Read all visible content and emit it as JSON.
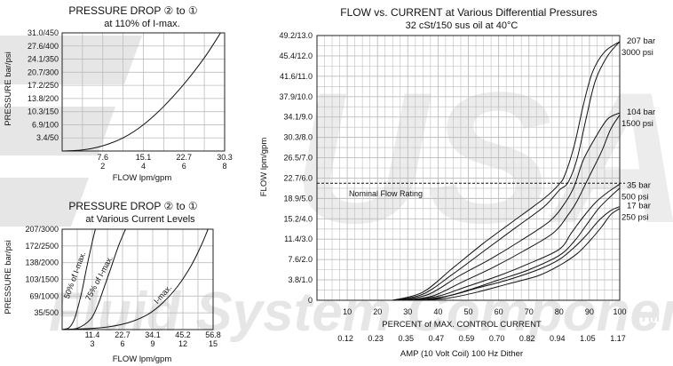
{
  "watermark": {
    "logo_text": "USA",
    "text": "Fluid System Components",
    "mark": "TM",
    "color": "#e8e8e8"
  },
  "colors": {
    "grid": "#bdbdbd",
    "line": "#111111",
    "watermark": "#e6e6e6"
  },
  "chart_data": [
    {
      "id": "top_left",
      "type": "line",
      "title": "PRESSURE DROP ② to ①",
      "subtitle": "at 110% of I-max.",
      "ylabel": "PRESSURE bar/psi",
      "xlabel": "FLOW lpm/gpm",
      "xlim": [
        0,
        8
      ],
      "ylim": [
        0,
        450
      ],
      "xticks": [
        {
          "v": 2,
          "top": "7.6",
          "bottom": "2"
        },
        {
          "v": 4,
          "top": "15.1",
          "bottom": "4"
        },
        {
          "v": 6,
          "top": "22.7",
          "bottom": "6"
        },
        {
          "v": 8,
          "top": "30.3",
          "bottom": "8"
        }
      ],
      "yticks": [
        {
          "v": 50,
          "label": "3.4/50"
        },
        {
          "v": 100,
          "label": "6.9/100"
        },
        {
          "v": 150,
          "label": "10.3/150"
        },
        {
          "v": 200,
          "label": "13.8/200"
        },
        {
          "v": 250,
          "label": "17.2/250"
        },
        {
          "v": 300,
          "label": "20.7/300"
        },
        {
          "v": 350,
          "label": "24.1/350"
        },
        {
          "v": 400,
          "label": "27.6/400"
        },
        {
          "v": 450,
          "label": "31.0/450"
        }
      ],
      "series": [
        {
          "x": [
            0,
            1,
            2,
            3,
            4,
            5,
            6,
            7,
            7.8
          ],
          "y": [
            0,
            4,
            20,
            50,
            100,
            170,
            255,
            355,
            450
          ]
        }
      ],
      "grid": true
    },
    {
      "id": "bottom_left",
      "type": "line",
      "title": "PRESSURE DROP ② to ①",
      "subtitle": "at Various Current Levels",
      "ylabel": "PRESSURE bar/psi",
      "xlabel": "FLOW lpm/gpm",
      "xlim": [
        0,
        15
      ],
      "ylim": [
        0,
        3000
      ],
      "xticks": [
        {
          "v": 3,
          "top": "11.4",
          "bottom": "3"
        },
        {
          "v": 6,
          "top": "22.7",
          "bottom": "6"
        },
        {
          "v": 9,
          "top": "34.1",
          "bottom": "9"
        },
        {
          "v": 12,
          "top": "45.2",
          "bottom": "12"
        },
        {
          "v": 15,
          "top": "56.8",
          "bottom": "15"
        }
      ],
      "yticks": [
        {
          "v": 500,
          "label": "35/500"
        },
        {
          "v": 1000,
          "label": "69/1000"
        },
        {
          "v": 1500,
          "label": "103/1500"
        },
        {
          "v": 2000,
          "label": "138/2000"
        },
        {
          "v": 2500,
          "label": "172/2500"
        },
        {
          "v": 3000,
          "label": "207/3000"
        }
      ],
      "series": [
        {
          "name": "50% of I-max.",
          "x": [
            0,
            0.7,
            1.2,
            1.6,
            2.0,
            2.4,
            2.9,
            3.3
          ],
          "y": [
            0,
            60,
            300,
            700,
            1200,
            1800,
            2500,
            3000
          ]
        },
        {
          "name": "75% of I-max.",
          "x": [
            0,
            1.5,
            2.8,
            3.5,
            4.1,
            4.8,
            5.6,
            6.3
          ],
          "y": [
            0,
            40,
            300,
            700,
            1200,
            1800,
            2500,
            3000
          ]
        },
        {
          "name": "I-max.",
          "x": [
            0,
            4,
            6.5,
            8.5,
            10,
            11.5,
            12.8,
            13.8,
            14.5
          ],
          "y": [
            0,
            60,
            200,
            450,
            800,
            1300,
            1900,
            2500,
            3000
          ]
        }
      ],
      "series_labels": [
        "50% of I-max.",
        "75% of I-max.",
        "I-max."
      ],
      "grid": true
    },
    {
      "id": "main",
      "type": "line",
      "title": "FLOW vs. CURRENT at Various Differential Pressures",
      "subtitle": "32 cSt/150 sus oil at 40°C",
      "ylabel": "FLOW lpm/gpm",
      "xlabel": "PERCENT of MAX. CONTROL CURRENT",
      "x2label": "AMP (10 Volt Coil) 100 Hz Dither",
      "xlim": [
        0,
        100
      ],
      "ylim": [
        0,
        13
      ],
      "xticks": [
        {
          "v": 10,
          "label": "10",
          "amp": "0.12"
        },
        {
          "v": 20,
          "label": "20",
          "amp": "0.23"
        },
        {
          "v": 30,
          "label": "30",
          "amp": "0.35"
        },
        {
          "v": 40,
          "label": "40",
          "amp": "0.47"
        },
        {
          "v": 50,
          "label": "50",
          "amp": "0.59"
        },
        {
          "v": 60,
          "label": "60",
          "amp": "0.70"
        },
        {
          "v": 70,
          "label": "70",
          "amp": "0.82"
        },
        {
          "v": 80,
          "label": "80",
          "amp": "0.94"
        },
        {
          "v": 90,
          "label": "90",
          "amp": "1.05"
        },
        {
          "v": 100,
          "label": "100",
          "amp": "1.17"
        }
      ],
      "yticks": [
        {
          "v": 0,
          "label": "0"
        },
        {
          "v": 1,
          "label": "3.8/1.0"
        },
        {
          "v": 2,
          "label": "7.6/2.0"
        },
        {
          "v": 3,
          "label": "11.4/3.0"
        },
        {
          "v": 4,
          "label": "15.2/4.0"
        },
        {
          "v": 5,
          "label": "18.9/5.0"
        },
        {
          "v": 6,
          "label": "22.7/6.0"
        },
        {
          "v": 7,
          "label": "26.5/7.0"
        },
        {
          "v": 8,
          "label": "30.3/8.0"
        },
        {
          "v": 9,
          "label": "34.1/9.0"
        },
        {
          "v": 10,
          "label": "37.9/10.0"
        },
        {
          "v": 11,
          "label": "41.6/11.0"
        },
        {
          "v": 12,
          "label": "45.4/12.0"
        },
        {
          "v": 13,
          "label": "49.2/13.0"
        }
      ],
      "reference_line": {
        "y": 5.75,
        "label": "Nominal Flow Rating"
      },
      "series": [
        {
          "name": "207 bar 3000 psi",
          "x": [
            25,
            35,
            45,
            55,
            65,
            75,
            80,
            82,
            85,
            88,
            91,
            95,
            100
          ],
          "y": [
            0,
            0.4,
            1.6,
            2.8,
            3.9,
            5.0,
            5.7,
            6.2,
            7.6,
            9.6,
            11.2,
            12.2,
            12.7
          ]
        },
        {
          "name": "207 bar 3000 psi",
          "x": [
            25,
            35,
            45,
            55,
            65,
            75,
            80,
            83,
            86,
            89,
            92,
            96,
            100
          ],
          "y": [
            0,
            0.3,
            1.3,
            2.4,
            3.5,
            4.6,
            5.4,
            5.8,
            7.0,
            9.0,
            10.8,
            12.0,
            12.7
          ]
        },
        {
          "name": "104 bar 1500 psi",
          "x": [
            27,
            37,
            47,
            57,
            67,
            77,
            82,
            85,
            88,
            92,
            96,
            100
          ],
          "y": [
            0,
            0.3,
            1.2,
            2.0,
            2.9,
            3.9,
            4.8,
            5.6,
            6.9,
            8.0,
            8.9,
            9.2
          ]
        },
        {
          "name": "104 bar 1500 psi",
          "x": [
            28,
            38,
            48,
            58,
            68,
            78,
            83,
            86,
            90,
            94,
            97,
            100
          ],
          "y": [
            0,
            0.2,
            0.9,
            1.6,
            2.4,
            3.3,
            4.2,
            4.9,
            6.1,
            7.3,
            8.4,
            9.1
          ]
        },
        {
          "name": "35 bar 500 psi",
          "x": [
            30,
            40,
            50,
            60,
            70,
            80,
            84,
            88,
            92,
            96,
            100
          ],
          "y": [
            0,
            0.2,
            0.7,
            1.2,
            1.8,
            2.5,
            3.3,
            4.1,
            4.8,
            5.3,
            5.7
          ]
        },
        {
          "name": "35 bar 500 psi",
          "x": [
            30,
            40,
            50,
            60,
            70,
            80,
            85,
            89,
            93,
            97,
            100
          ],
          "y": [
            0,
            0.1,
            0.5,
            1.0,
            1.5,
            2.2,
            2.9,
            3.7,
            4.5,
            5.1,
            5.5
          ]
        },
        {
          "name": "17 bar 250 psi",
          "x": [
            33,
            43,
            53,
            63,
            73,
            80,
            85,
            89,
            93,
            97,
            100
          ],
          "y": [
            0,
            0.2,
            0.6,
            1.0,
            1.5,
            2.0,
            2.6,
            3.2,
            3.9,
            4.4,
            4.6
          ]
        },
        {
          "name": "17 bar 250 psi",
          "x": [
            33,
            43,
            53,
            63,
            73,
            80,
            86,
            90,
            94,
            97,
            100
          ],
          "y": [
            0,
            0.1,
            0.4,
            0.8,
            1.2,
            1.7,
            2.3,
            2.9,
            3.6,
            4.2,
            4.5
          ]
        }
      ],
      "legend": [
        {
          "bar": "207 bar",
          "psi": "3000 psi",
          "y": 12.7
        },
        {
          "bar": "104 bar",
          "psi": "1500 psi",
          "y": 9.2
        },
        {
          "bar": "35 bar",
          "psi": "500 psi",
          "y": 5.6
        },
        {
          "bar": "17 bar",
          "psi": "250 psi",
          "y": 4.6
        }
      ],
      "grid": true
    }
  ]
}
